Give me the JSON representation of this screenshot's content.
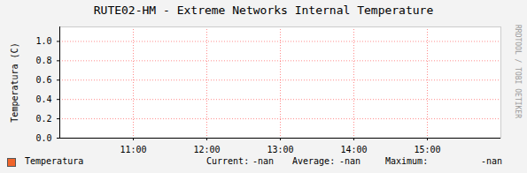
{
  "chart_data": {
    "type": "line",
    "title": "RUTE02-HM - Extreme Networks Internal Temperature",
    "y_label": "Temperatura (C)",
    "x": [
      "11:00",
      "12:00",
      "13:00",
      "14:00",
      "15:00"
    ],
    "series": [
      {
        "name": "Temperatura",
        "color": "#f0642a",
        "values": [
          null,
          null,
          null,
          null,
          null
        ]
      }
    ],
    "xlim": [
      "10:00",
      "16:00"
    ],
    "xticks": [
      "11:00",
      "12:00",
      "13:00",
      "14:00",
      "15:00"
    ],
    "ylim": [
      0,
      1.15
    ],
    "yticks": [
      {
        "value": 0,
        "label": "0.0"
      },
      0.2,
      0.4,
      0.6,
      0.8,
      {
        "value": 1,
        "label": "1.0"
      }
    ],
    "grid": true,
    "stats": [
      {
        "label": "Current:",
        "value": "-nan"
      },
      {
        "label": "Average:",
        "value": "-nan"
      },
      {
        "label": "Maximum:",
        "value": "-nan"
      }
    ],
    "annotations": [
      "RRDTOOL / TOBI OETIKER"
    ]
  }
}
